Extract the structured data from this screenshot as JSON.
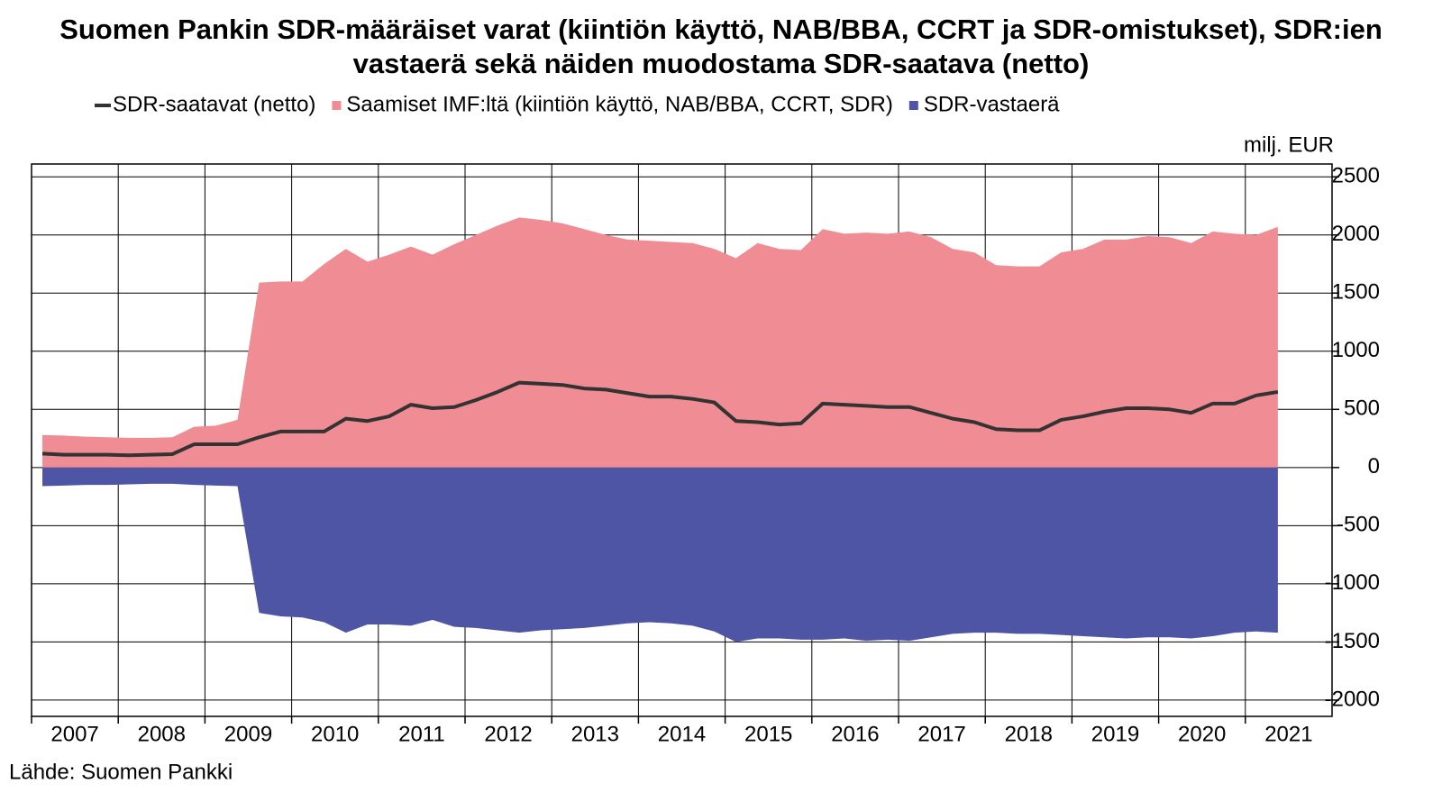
{
  "chart_data": {
    "type": "area",
    "title": "Suomen Pankin SDR-määräiset varat (kiintiön käyttö, NAB/BBA, CCRT ja SDR-omistukset), SDR:ien vastaerä sekä näiden muodostama SDR-saatava (netto)",
    "y_label": "milj. EUR",
    "source": "Lähde: Suomen Pankki",
    "categories": [
      "2007",
      null,
      null,
      null,
      "2008",
      null,
      null,
      null,
      "2009",
      null,
      null,
      null,
      "2010",
      null,
      null,
      null,
      "2011",
      null,
      null,
      null,
      "2012",
      null,
      null,
      null,
      "2013",
      null,
      null,
      null,
      "2014",
      null,
      null,
      null,
      "2015",
      null,
      null,
      null,
      "2016",
      null,
      null,
      null,
      "2017",
      null,
      null,
      null,
      "2018",
      null,
      null,
      null,
      "2019",
      null,
      null,
      null,
      "2020",
      null,
      null,
      null,
      "2021",
      null,
      null,
      null
    ],
    "series": [
      {
        "name": "SDR-saatavat (netto)",
        "type": "line",
        "color": "#333333",
        "values": [
          120,
          110,
          110,
          110,
          105,
          110,
          115,
          200,
          200,
          200,
          260,
          310,
          310,
          310,
          420,
          400,
          440,
          540,
          510,
          520,
          580,
          650,
          730,
          720,
          710,
          680,
          670,
          640,
          610,
          610,
          590,
          560,
          400,
          390,
          370,
          380,
          550,
          540,
          530,
          520,
          520,
          470,
          420,
          390,
          330,
          320,
          320,
          410,
          440,
          480,
          510,
          510,
          500,
          470,
          550,
          550,
          620,
          650,
          null,
          null
        ]
      },
      {
        "name": "Saamiset IMF:ltä (kiintiön käyttö, NAB/BBA, CCRT, SDR)",
        "type": "area",
        "color": "#f08c93",
        "values": [
          280,
          275,
          265,
          260,
          255,
          255,
          260,
          350,
          360,
          410,
          1590,
          1600,
          1600,
          1750,
          1880,
          1770,
          1830,
          1900,
          1830,
          1920,
          2000,
          2080,
          2150,
          2130,
          2100,
          2050,
          2000,
          1960,
          1950,
          1940,
          1930,
          1880,
          1800,
          1930,
          1880,
          1870,
          2050,
          2010,
          2020,
          2010,
          2030,
          1980,
          1880,
          1850,
          1740,
          1730,
          1730,
          1850,
          1880,
          1960,
          1960,
          1990,
          1980,
          1930,
          2030,
          2010,
          2000,
          2070,
          null,
          null
        ]
      },
      {
        "name": "SDR-vastaerä",
        "type": "area",
        "color": "#4f55a5",
        "values": [
          -160,
          -155,
          -150,
          -150,
          -145,
          -140,
          -140,
          -150,
          -155,
          -160,
          -1250,
          -1280,
          -1290,
          -1330,
          -1420,
          -1350,
          -1350,
          -1360,
          -1310,
          -1370,
          -1380,
          -1400,
          -1420,
          -1400,
          -1390,
          -1380,
          -1360,
          -1340,
          -1330,
          -1340,
          -1360,
          -1410,
          -1500,
          -1470,
          -1470,
          -1480,
          -1480,
          -1470,
          -1490,
          -1480,
          -1490,
          -1460,
          -1430,
          -1420,
          -1420,
          -1430,
          -1430,
          -1440,
          -1450,
          -1460,
          -1470,
          -1460,
          -1460,
          -1470,
          -1450,
          -1420,
          -1410,
          -1420,
          null,
          null
        ]
      }
    ],
    "ylim": [
      -2140,
      2610
    ],
    "yticks": [
      -2000,
      -1500,
      -1000,
      -500,
      0,
      500,
      1000,
      1500,
      2000,
      2500
    ],
    "grid": true
  }
}
